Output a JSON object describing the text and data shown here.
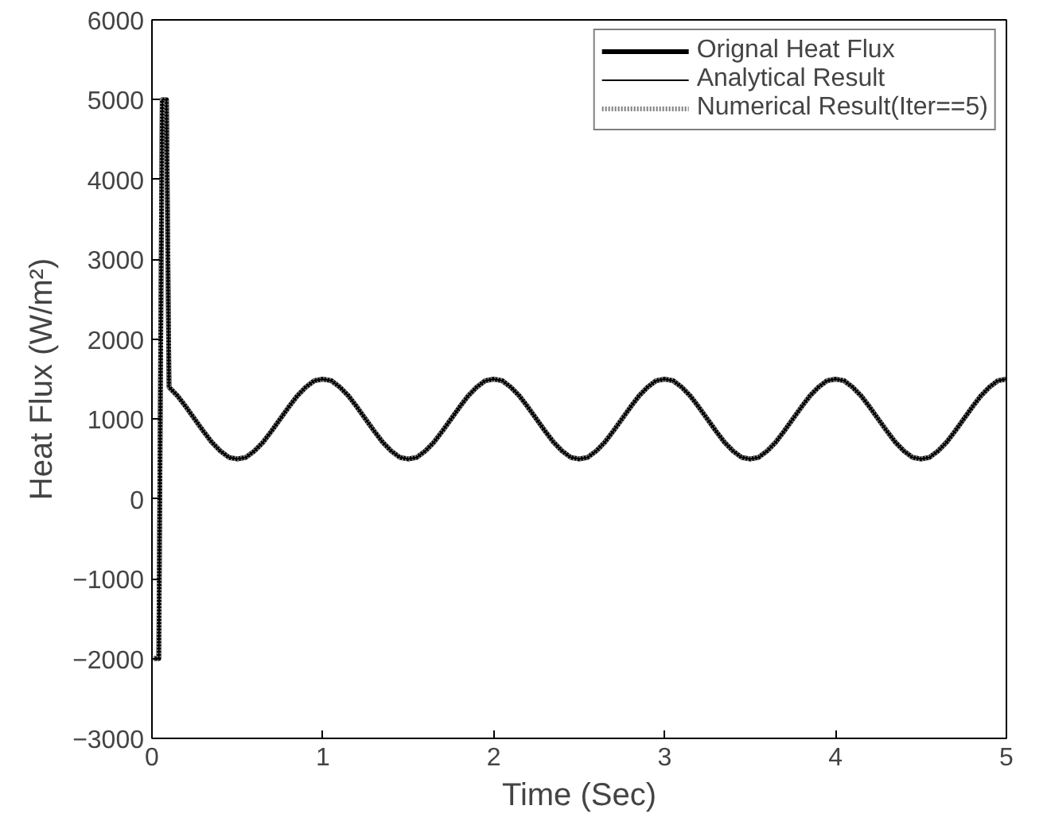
{
  "chart_data": {
    "type": "line",
    "xlabel": "Time (Sec)",
    "ylabel": "Heat Flux (W/m²)",
    "x": [
      0.01,
      0.04,
      0.06,
      0.085,
      0.1,
      0.15,
      0.2,
      0.25,
      0.3,
      0.35,
      0.4,
      0.45,
      0.5,
      0.55,
      0.6,
      0.65,
      0.7,
      0.75,
      0.8,
      0.85,
      0.9,
      0.95,
      1.0,
      1.05,
      1.1,
      1.15,
      1.2,
      1.25,
      1.3,
      1.35,
      1.4,
      1.45,
      1.5,
      1.55,
      1.6,
      1.65,
      1.7,
      1.75,
      1.8,
      1.85,
      1.9,
      1.95,
      2.0,
      2.05,
      2.1,
      2.15,
      2.2,
      2.25,
      2.3,
      2.35,
      2.4,
      2.45,
      2.5,
      2.55,
      2.6,
      2.65,
      2.7,
      2.75,
      2.8,
      2.85,
      2.9,
      2.95,
      3.0,
      3.05,
      3.1,
      3.15,
      3.2,
      3.25,
      3.3,
      3.35,
      3.4,
      3.45,
      3.5,
      3.55,
      3.6,
      3.65,
      3.7,
      3.75,
      3.8,
      3.85,
      3.9,
      3.95,
      4.0,
      4.05,
      4.1,
      4.15,
      4.2,
      4.25,
      4.3,
      4.35,
      4.4,
      4.45,
      4.5,
      4.55,
      4.6,
      4.65,
      4.7,
      4.75,
      4.8,
      4.85,
      4.9,
      4.95,
      5.0
    ],
    "series": [
      {
        "name": "Orignal Heat Flux",
        "color": "#000000",
        "line_style": "solid",
        "values": [
          -2000,
          -2000,
          5000,
          5000,
          1400,
          1290,
          1150,
          1000,
          850,
          710,
          600,
          520,
          500,
          520,
          600,
          710,
          850,
          1000,
          1150,
          1290,
          1400,
          1480,
          1500,
          1480,
          1400,
          1290,
          1150,
          1000,
          850,
          710,
          600,
          520,
          500,
          520,
          600,
          710,
          850,
          1000,
          1150,
          1290,
          1400,
          1480,
          1500,
          1480,
          1400,
          1290,
          1150,
          1000,
          850,
          710,
          600,
          520,
          500,
          520,
          600,
          710,
          850,
          1000,
          1150,
          1290,
          1400,
          1480,
          1500,
          1480,
          1400,
          1290,
          1150,
          1000,
          850,
          710,
          600,
          520,
          500,
          520,
          600,
          710,
          850,
          1000,
          1150,
          1290,
          1400,
          1480,
          1500,
          1480,
          1400,
          1290,
          1150,
          1000,
          850,
          710,
          600,
          520,
          500,
          520,
          600,
          710,
          850,
          1000,
          1150,
          1290,
          1400,
          1480,
          1500
        ]
      },
      {
        "name": "Analytical Result",
        "color": "#000000",
        "line_style": "solid",
        "values": [
          -2000,
          -2000,
          5000,
          5000,
          1400,
          1290,
          1150,
          1000,
          850,
          710,
          600,
          520,
          500,
          520,
          600,
          710,
          850,
          1000,
          1150,
          1290,
          1400,
          1480,
          1500,
          1480,
          1400,
          1290,
          1150,
          1000,
          850,
          710,
          600,
          520,
          500,
          520,
          600,
          710,
          850,
          1000,
          1150,
          1290,
          1400,
          1480,
          1500,
          1480,
          1400,
          1290,
          1150,
          1000,
          850,
          710,
          600,
          520,
          500,
          520,
          600,
          710,
          850,
          1000,
          1150,
          1290,
          1400,
          1480,
          1500,
          1480,
          1400,
          1290,
          1150,
          1000,
          850,
          710,
          600,
          520,
          500,
          520,
          600,
          710,
          850,
          1000,
          1150,
          1290,
          1400,
          1480,
          1500,
          1480,
          1400,
          1290,
          1150,
          1000,
          850,
          710,
          600,
          520,
          500,
          520,
          600,
          710,
          850,
          1000,
          1150,
          1290,
          1400,
          1480,
          1500
        ]
      },
      {
        "name": "Numerical Result(Iter==5)",
        "color": "#808080",
        "line_style": "dotted",
        "values": [
          -2000,
          -2000,
          5000,
          5000,
          1400,
          1290,
          1150,
          1000,
          850,
          710,
          600,
          520,
          500,
          520,
          600,
          710,
          850,
          1000,
          1150,
          1290,
          1400,
          1480,
          1500,
          1480,
          1400,
          1290,
          1150,
          1000,
          850,
          710,
          600,
          520,
          500,
          520,
          600,
          710,
          850,
          1000,
          1150,
          1290,
          1400,
          1480,
          1500,
          1480,
          1400,
          1290,
          1150,
          1000,
          850,
          710,
          600,
          520,
          500,
          520,
          600,
          710,
          850,
          1000,
          1150,
          1290,
          1400,
          1480,
          1500,
          1480,
          1400,
          1290,
          1150,
          1000,
          850,
          710,
          600,
          520,
          500,
          520,
          600,
          710,
          850,
          1000,
          1150,
          1290,
          1400,
          1480,
          1500,
          1480,
          1400,
          1290,
          1150,
          1000,
          850,
          710,
          600,
          520,
          500,
          520,
          600,
          710,
          850,
          1000,
          1150,
          1290,
          1400,
          1480,
          1500
        ]
      }
    ],
    "xlim": [
      0,
      5
    ],
    "ylim": [
      -3000,
      6000
    ],
    "xticks": [
      0,
      1,
      2,
      3,
      4,
      5
    ],
    "yticks": [
      -3000,
      -2000,
      -1000,
      0,
      1000,
      2000,
      3000,
      4000,
      5000,
      6000
    ],
    "grid": false,
    "legend": "top right"
  }
}
